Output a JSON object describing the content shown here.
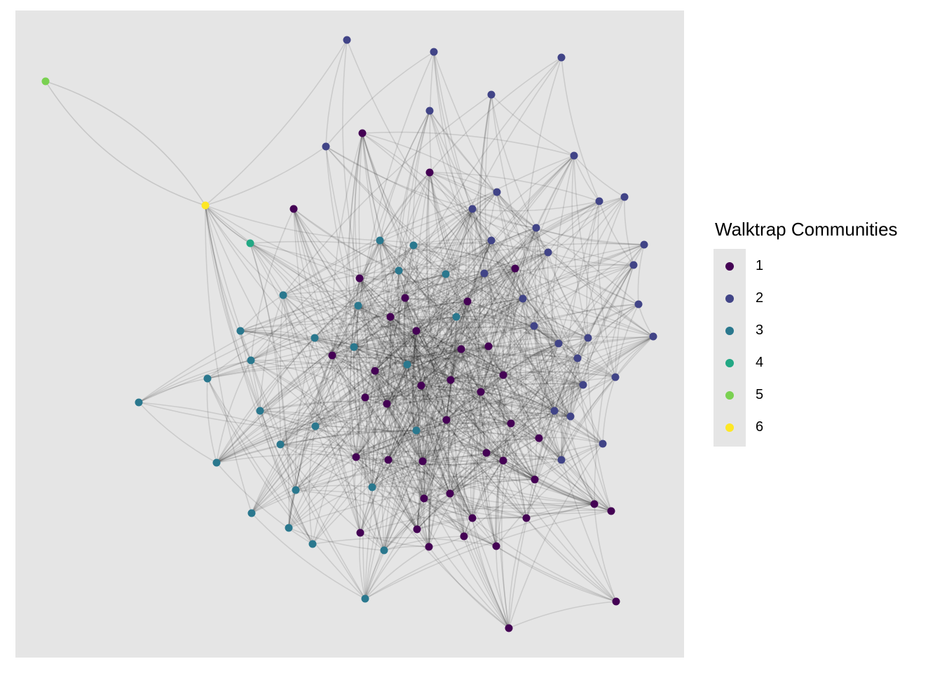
{
  "legend": {
    "title": "Walktrap Communities",
    "items": [
      {
        "label": "1",
        "color": "#440154"
      },
      {
        "label": "2",
        "color": "#414487"
      },
      {
        "label": "3",
        "color": "#2a788e"
      },
      {
        "label": "4",
        "color": "#22a884"
      },
      {
        "label": "5",
        "color": "#7ad151"
      },
      {
        "label": "6",
        "color": "#fde725"
      }
    ]
  },
  "colors": {
    "panel_background": "#e5e5e5",
    "edge": "#000000"
  }
}
